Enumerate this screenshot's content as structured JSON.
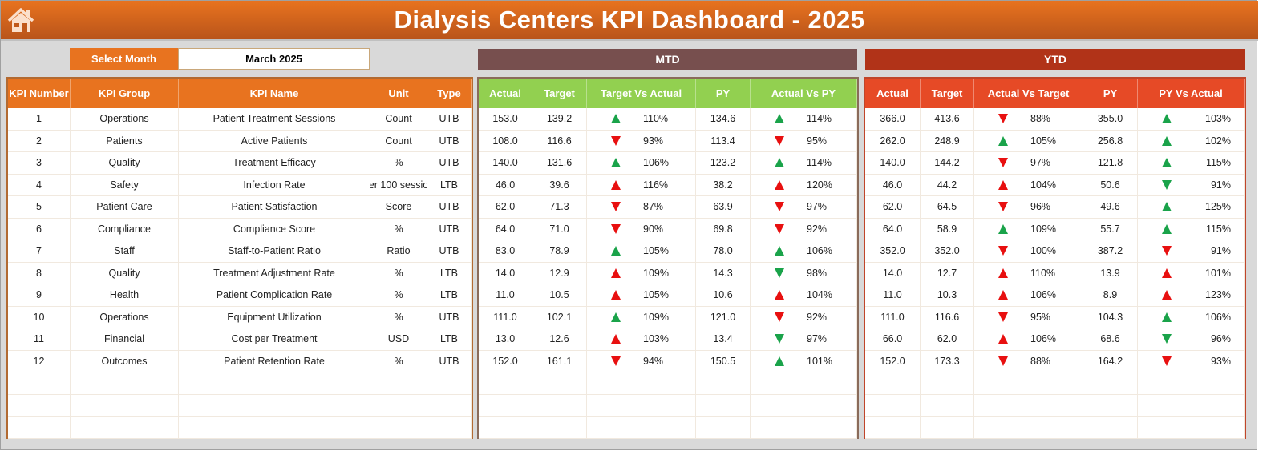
{
  "header": {
    "title": "Dialysis Centers KPI Dashboard - 2025",
    "home_icon": "home-icon"
  },
  "month_selector": {
    "label": "Select Month",
    "value": "March 2025"
  },
  "sections": {
    "mtd": "MTD",
    "ytd": "YTD"
  },
  "colors": {
    "good": "#1aa34a",
    "bad": "#e81010",
    "orange": "#e8731f",
    "mtd_header": "#92d050",
    "ytd_header": "#e64a26"
  },
  "kpi_columns": [
    "KPI Number",
    "KPI Group",
    "KPI Name",
    "Unit",
    "Type"
  ],
  "mtd_columns": [
    "Actual",
    "Target",
    "Target Vs Actual",
    "PY",
    "Actual Vs PY"
  ],
  "ytd_columns": [
    "Actual",
    "Target",
    "Actual Vs Target",
    "PY",
    "PY Vs Actual"
  ],
  "kpis": [
    {
      "num": "1",
      "group": "Operations",
      "name": "Patient Treatment Sessions",
      "unit": "Count",
      "type": "UTB"
    },
    {
      "num": "2",
      "group": "Patients",
      "name": "Active Patients",
      "unit": "Count",
      "type": "UTB"
    },
    {
      "num": "3",
      "group": "Quality",
      "name": "Treatment Efficacy",
      "unit": "%",
      "type": "UTB"
    },
    {
      "num": "4",
      "group": "Safety",
      "name": "Infection Rate",
      "unit": "er 100 sessio",
      "type": "LTB"
    },
    {
      "num": "5",
      "group": "Patient Care",
      "name": "Patient Satisfaction",
      "unit": "Score",
      "type": "UTB"
    },
    {
      "num": "6",
      "group": "Compliance",
      "name": "Compliance Score",
      "unit": "%",
      "type": "UTB"
    },
    {
      "num": "7",
      "group": "Staff",
      "name": "Staff-to-Patient Ratio",
      "unit": "Ratio",
      "type": "UTB"
    },
    {
      "num": "8",
      "group": "Quality",
      "name": "Treatment Adjustment Rate",
      "unit": "%",
      "type": "LTB"
    },
    {
      "num": "9",
      "group": "Health",
      "name": "Patient Complication Rate",
      "unit": "%",
      "type": "LTB"
    },
    {
      "num": "10",
      "group": "Operations",
      "name": "Equipment Utilization",
      "unit": "%",
      "type": "UTB"
    },
    {
      "num": "11",
      "group": "Financial",
      "name": "Cost per Treatment",
      "unit": "USD",
      "type": "LTB"
    },
    {
      "num": "12",
      "group": "Outcomes",
      "name": "Patient Retention Rate",
      "unit": "%",
      "type": "UTB"
    }
  ],
  "mtd": [
    {
      "actual": "153.0",
      "target": "139.2",
      "tva": "110%",
      "tva_dir": "up",
      "tva_status": "good",
      "py": "134.6",
      "avpy": "114%",
      "avpy_dir": "up",
      "avpy_status": "good"
    },
    {
      "actual": "108.0",
      "target": "116.6",
      "tva": "93%",
      "tva_dir": "down",
      "tva_status": "bad",
      "py": "113.4",
      "avpy": "95%",
      "avpy_dir": "down",
      "avpy_status": "bad"
    },
    {
      "actual": "140.0",
      "target": "131.6",
      "tva": "106%",
      "tva_dir": "up",
      "tva_status": "good",
      "py": "123.2",
      "avpy": "114%",
      "avpy_dir": "up",
      "avpy_status": "good"
    },
    {
      "actual": "46.0",
      "target": "39.6",
      "tva": "116%",
      "tva_dir": "up",
      "tva_status": "bad",
      "py": "38.2",
      "avpy": "120%",
      "avpy_dir": "up",
      "avpy_status": "bad"
    },
    {
      "actual": "62.0",
      "target": "71.3",
      "tva": "87%",
      "tva_dir": "down",
      "tva_status": "bad",
      "py": "63.9",
      "avpy": "97%",
      "avpy_dir": "down",
      "avpy_status": "bad"
    },
    {
      "actual": "64.0",
      "target": "71.0",
      "tva": "90%",
      "tva_dir": "down",
      "tva_status": "bad",
      "py": "69.8",
      "avpy": "92%",
      "avpy_dir": "down",
      "avpy_status": "bad"
    },
    {
      "actual": "83.0",
      "target": "78.9",
      "tva": "105%",
      "tva_dir": "up",
      "tva_status": "good",
      "py": "78.0",
      "avpy": "106%",
      "avpy_dir": "up",
      "avpy_status": "good"
    },
    {
      "actual": "14.0",
      "target": "12.9",
      "tva": "109%",
      "tva_dir": "up",
      "tva_status": "bad",
      "py": "14.3",
      "avpy": "98%",
      "avpy_dir": "down",
      "avpy_status": "good"
    },
    {
      "actual": "11.0",
      "target": "10.5",
      "tva": "105%",
      "tva_dir": "up",
      "tva_status": "bad",
      "py": "10.6",
      "avpy": "104%",
      "avpy_dir": "up",
      "avpy_status": "bad"
    },
    {
      "actual": "111.0",
      "target": "102.1",
      "tva": "109%",
      "tva_dir": "up",
      "tva_status": "good",
      "py": "121.0",
      "avpy": "92%",
      "avpy_dir": "down",
      "avpy_status": "bad"
    },
    {
      "actual": "13.0",
      "target": "12.6",
      "tva": "103%",
      "tva_dir": "up",
      "tva_status": "bad",
      "py": "13.4",
      "avpy": "97%",
      "avpy_dir": "down",
      "avpy_status": "good"
    },
    {
      "actual": "152.0",
      "target": "161.1",
      "tva": "94%",
      "tva_dir": "down",
      "tva_status": "bad",
      "py": "150.5",
      "avpy": "101%",
      "avpy_dir": "up",
      "avpy_status": "good"
    }
  ],
  "ytd": [
    {
      "actual": "366.0",
      "target": "413.6",
      "tva": "88%",
      "tva_dir": "down",
      "tva_status": "bad",
      "py": "355.0",
      "avpy": "103%",
      "avpy_dir": "up",
      "avpy_status": "good"
    },
    {
      "actual": "262.0",
      "target": "248.9",
      "tva": "105%",
      "tva_dir": "up",
      "tva_status": "good",
      "py": "256.8",
      "avpy": "102%",
      "avpy_dir": "up",
      "avpy_status": "good"
    },
    {
      "actual": "140.0",
      "target": "144.2",
      "tva": "97%",
      "tva_dir": "down",
      "tva_status": "bad",
      "py": "121.8",
      "avpy": "115%",
      "avpy_dir": "up",
      "avpy_status": "good"
    },
    {
      "actual": "46.0",
      "target": "44.2",
      "tva": "104%",
      "tva_dir": "up",
      "tva_status": "bad",
      "py": "50.6",
      "avpy": "91%",
      "avpy_dir": "down",
      "avpy_status": "good"
    },
    {
      "actual": "62.0",
      "target": "64.5",
      "tva": "96%",
      "tva_dir": "down",
      "tva_status": "bad",
      "py": "49.6",
      "avpy": "125%",
      "avpy_dir": "up",
      "avpy_status": "good"
    },
    {
      "actual": "64.0",
      "target": "58.9",
      "tva": "109%",
      "tva_dir": "up",
      "tva_status": "good",
      "py": "55.7",
      "avpy": "115%",
      "avpy_dir": "up",
      "avpy_status": "good"
    },
    {
      "actual": "352.0",
      "target": "352.0",
      "tva": "100%",
      "tva_dir": "down",
      "tva_status": "bad",
      "py": "387.2",
      "avpy": "91%",
      "avpy_dir": "down",
      "avpy_status": "bad"
    },
    {
      "actual": "14.0",
      "target": "12.7",
      "tva": "110%",
      "tva_dir": "up",
      "tva_status": "bad",
      "py": "13.9",
      "avpy": "101%",
      "avpy_dir": "up",
      "avpy_status": "bad"
    },
    {
      "actual": "11.0",
      "target": "10.3",
      "tva": "106%",
      "tva_dir": "up",
      "tva_status": "bad",
      "py": "8.9",
      "avpy": "123%",
      "avpy_dir": "up",
      "avpy_status": "bad"
    },
    {
      "actual": "111.0",
      "target": "116.6",
      "tva": "95%",
      "tva_dir": "down",
      "tva_status": "bad",
      "py": "104.3",
      "avpy": "106%",
      "avpy_dir": "up",
      "avpy_status": "good"
    },
    {
      "actual": "66.0",
      "target": "62.0",
      "tva": "106%",
      "tva_dir": "up",
      "tva_status": "bad",
      "py": "68.6",
      "avpy": "96%",
      "avpy_dir": "down",
      "avpy_status": "good"
    },
    {
      "actual": "152.0",
      "target": "173.3",
      "tva": "88%",
      "tva_dir": "down",
      "tva_status": "bad",
      "py": "164.2",
      "avpy": "93%",
      "avpy_dir": "down",
      "avpy_status": "bad"
    }
  ]
}
